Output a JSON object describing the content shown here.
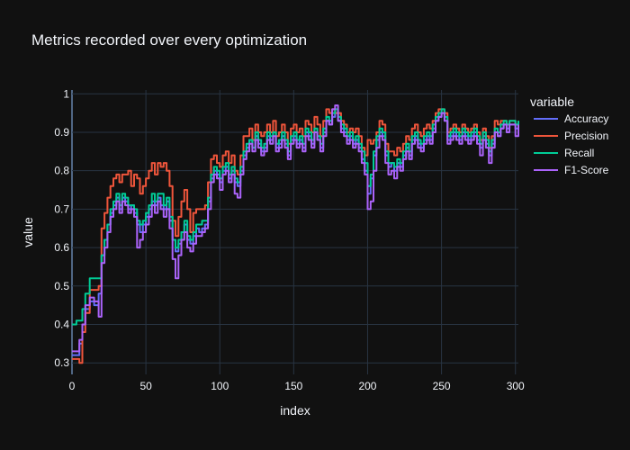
{
  "chart_data": {
    "type": "line",
    "title": "Metrics recorded over every optimization",
    "xlabel": "index",
    "ylabel": "value",
    "xlim": [
      0,
      302
    ],
    "ylim": [
      0.27,
      1.01
    ],
    "x_ticks": [
      0,
      50,
      100,
      150,
      200,
      250,
      300
    ],
    "y_ticks": [
      0.3,
      0.4,
      0.5,
      0.6,
      0.7,
      0.8,
      0.9,
      1
    ],
    "grid": true,
    "legend": {
      "title": "variable",
      "position": "right"
    },
    "series": [
      {
        "name": "Accuracy",
        "color": "#636efa",
        "x": [
          0,
          3,
          5,
          7,
          9,
          12,
          15,
          18,
          20,
          22,
          24,
          26,
          28,
          30,
          32,
          34,
          36,
          38,
          40,
          42,
          44,
          46,
          48,
          50,
          52,
          54,
          56,
          58,
          60,
          62,
          64,
          66,
          68,
          70,
          72,
          74,
          76,
          78,
          80,
          82,
          84,
          86,
          88,
          90,
          92,
          94,
          96,
          98,
          100,
          102,
          104,
          106,
          108,
          110,
          112,
          114,
          116,
          118,
          120,
          122,
          124,
          126,
          128,
          130,
          132,
          134,
          136,
          138,
          140,
          142,
          144,
          146,
          148,
          150,
          152,
          154,
          156,
          158,
          160,
          162,
          164,
          166,
          168,
          170,
          172,
          174,
          176,
          178,
          180,
          182,
          184,
          186,
          188,
          190,
          192,
          194,
          196,
          198,
          200,
          202,
          204,
          206,
          208,
          210,
          212,
          214,
          216,
          218,
          220,
          222,
          224,
          226,
          228,
          230,
          232,
          234,
          236,
          238,
          240,
          242,
          244,
          246,
          248,
          250,
          252,
          254,
          256,
          258,
          260,
          262,
          264,
          266,
          268,
          270,
          272,
          274,
          276,
          278,
          280,
          282,
          284,
          286,
          288,
          290,
          292,
          294,
          296,
          298,
          300,
          302
        ],
        "y": [
          0.32,
          0.32,
          0.35,
          0.4,
          0.44,
          0.46,
          0.45,
          0.48,
          0.58,
          0.62,
          0.66,
          0.69,
          0.71,
          0.73,
          0.7,
          0.73,
          0.72,
          0.7,
          0.71,
          0.69,
          0.66,
          0.64,
          0.66,
          0.68,
          0.7,
          0.72,
          0.71,
          0.73,
          0.71,
          0.7,
          0.72,
          0.67,
          0.62,
          0.59,
          0.61,
          0.64,
          0.66,
          0.62,
          0.61,
          0.63,
          0.65,
          0.64,
          0.65,
          0.66,
          0.72,
          0.78,
          0.8,
          0.79,
          0.77,
          0.8,
          0.81,
          0.78,
          0.8,
          0.77,
          0.76,
          0.8,
          0.84,
          0.86,
          0.88,
          0.86,
          0.89,
          0.87,
          0.85,
          0.86,
          0.89,
          0.88,
          0.9,
          0.86,
          0.87,
          0.89,
          0.87,
          0.84,
          0.88,
          0.89,
          0.87,
          0.88,
          0.86,
          0.9,
          0.89,
          0.87,
          0.9,
          0.88,
          0.86,
          0.9,
          0.93,
          0.92,
          0.94,
          0.95,
          0.93,
          0.91,
          0.9,
          0.88,
          0.89,
          0.87,
          0.88,
          0.86,
          0.83,
          0.8,
          0.74,
          0.78,
          0.84,
          0.88,
          0.9,
          0.89,
          0.84,
          0.81,
          0.82,
          0.8,
          0.82,
          0.81,
          0.84,
          0.86,
          0.84,
          0.88,
          0.89,
          0.87,
          0.86,
          0.88,
          0.89,
          0.88,
          0.91,
          0.93,
          0.94,
          0.95,
          0.93,
          0.88,
          0.89,
          0.9,
          0.89,
          0.88,
          0.9,
          0.89,
          0.88,
          0.89,
          0.9,
          0.88,
          0.86,
          0.89,
          0.87,
          0.84,
          0.87,
          0.9,
          0.89,
          0.91,
          0.92,
          0.91,
          0.92,
          0.92,
          0.91,
          0.92
        ]
      },
      {
        "name": "Precision",
        "color": "#ef553b",
        "x": [
          0,
          3,
          5,
          7,
          9,
          12,
          15,
          18,
          20,
          22,
          24,
          26,
          28,
          30,
          32,
          34,
          36,
          38,
          40,
          42,
          44,
          46,
          48,
          50,
          52,
          54,
          56,
          58,
          60,
          62,
          64,
          66,
          68,
          70,
          72,
          74,
          76,
          78,
          80,
          82,
          84,
          86,
          88,
          90,
          92,
          94,
          96,
          98,
          100,
          102,
          104,
          106,
          108,
          110,
          112,
          114,
          116,
          118,
          120,
          122,
          124,
          126,
          128,
          130,
          132,
          134,
          136,
          138,
          140,
          142,
          144,
          146,
          148,
          150,
          152,
          154,
          156,
          158,
          160,
          162,
          164,
          166,
          168,
          170,
          172,
          174,
          176,
          178,
          180,
          182,
          184,
          186,
          188,
          190,
          192,
          194,
          196,
          198,
          200,
          202,
          204,
          206,
          208,
          210,
          212,
          214,
          216,
          218,
          220,
          222,
          224,
          226,
          228,
          230,
          232,
          234,
          236,
          238,
          240,
          242,
          244,
          246,
          248,
          250,
          252,
          254,
          256,
          258,
          260,
          262,
          264,
          266,
          268,
          270,
          272,
          274,
          276,
          278,
          280,
          282,
          284,
          286,
          288,
          290,
          292,
          294,
          296,
          298,
          300,
          302
        ],
        "y": [
          0.31,
          0.31,
          0.3,
          0.38,
          0.43,
          0.49,
          0.49,
          0.5,
          0.65,
          0.69,
          0.73,
          0.76,
          0.78,
          0.79,
          0.77,
          0.79,
          0.79,
          0.8,
          0.76,
          0.79,
          0.78,
          0.74,
          0.76,
          0.78,
          0.8,
          0.82,
          0.79,
          0.82,
          0.81,
          0.82,
          0.8,
          0.76,
          0.67,
          0.63,
          0.68,
          0.72,
          0.75,
          0.7,
          0.64,
          0.69,
          0.7,
          0.7,
          0.7,
          0.71,
          0.77,
          0.83,
          0.84,
          0.82,
          0.81,
          0.84,
          0.85,
          0.82,
          0.84,
          0.8,
          0.79,
          0.84,
          0.89,
          0.89,
          0.91,
          0.88,
          0.92,
          0.9,
          0.89,
          0.9,
          0.92,
          0.9,
          0.93,
          0.89,
          0.9,
          0.92,
          0.9,
          0.87,
          0.91,
          0.92,
          0.9,
          0.91,
          0.89,
          0.93,
          0.92,
          0.9,
          0.94,
          0.92,
          0.89,
          0.93,
          0.96,
          0.95,
          0.96,
          0.95,
          0.95,
          0.93,
          0.92,
          0.9,
          0.91,
          0.9,
          0.91,
          0.89,
          0.86,
          0.84,
          0.88,
          0.87,
          0.88,
          0.9,
          0.93,
          0.92,
          0.87,
          0.85,
          0.85,
          0.84,
          0.86,
          0.85,
          0.87,
          0.89,
          0.88,
          0.91,
          0.92,
          0.9,
          0.89,
          0.91,
          0.92,
          0.91,
          0.93,
          0.95,
          0.96,
          0.96,
          0.95,
          0.9,
          0.91,
          0.92,
          0.91,
          0.9,
          0.92,
          0.91,
          0.9,
          0.91,
          0.92,
          0.9,
          0.88,
          0.91,
          0.89,
          0.86,
          0.89,
          0.93,
          0.92,
          0.93,
          0.93,
          0.92,
          0.93,
          0.93,
          0.92,
          0.93
        ]
      },
      {
        "name": "Recall",
        "color": "#00cc96",
        "x": [
          0,
          3,
          5,
          7,
          9,
          12,
          15,
          18,
          20,
          22,
          24,
          26,
          28,
          30,
          32,
          34,
          36,
          38,
          40,
          42,
          44,
          46,
          48,
          50,
          52,
          54,
          56,
          58,
          60,
          62,
          64,
          66,
          68,
          70,
          72,
          74,
          76,
          78,
          80,
          82,
          84,
          86,
          88,
          90,
          92,
          94,
          96,
          98,
          100,
          102,
          104,
          106,
          108,
          110,
          112,
          114,
          116,
          118,
          120,
          122,
          124,
          126,
          128,
          130,
          132,
          134,
          136,
          138,
          140,
          142,
          144,
          146,
          148,
          150,
          152,
          154,
          156,
          158,
          160,
          162,
          164,
          166,
          168,
          170,
          172,
          174,
          176,
          178,
          180,
          182,
          184,
          186,
          188,
          190,
          192,
          194,
          196,
          198,
          200,
          202,
          204,
          206,
          208,
          210,
          212,
          214,
          216,
          218,
          220,
          222,
          224,
          226,
          228,
          230,
          232,
          234,
          236,
          238,
          240,
          242,
          244,
          246,
          248,
          250,
          252,
          254,
          256,
          258,
          260,
          262,
          264,
          266,
          268,
          270,
          272,
          274,
          276,
          278,
          280,
          282,
          284,
          286,
          288,
          290,
          292,
          294,
          296,
          298,
          300,
          302
        ],
        "y": [
          0.4,
          0.41,
          0.41,
          0.44,
          0.48,
          0.52,
          0.52,
          0.52,
          0.58,
          0.62,
          0.66,
          0.7,
          0.72,
          0.74,
          0.71,
          0.74,
          0.73,
          0.71,
          0.71,
          0.7,
          0.67,
          0.66,
          0.67,
          0.69,
          0.71,
          0.74,
          0.72,
          0.74,
          0.74,
          0.71,
          0.73,
          0.68,
          0.62,
          0.6,
          0.62,
          0.64,
          0.67,
          0.63,
          0.62,
          0.64,
          0.66,
          0.66,
          0.67,
          0.67,
          0.73,
          0.79,
          0.81,
          0.8,
          0.78,
          0.81,
          0.82,
          0.79,
          0.81,
          0.78,
          0.77,
          0.81,
          0.85,
          0.87,
          0.88,
          0.86,
          0.9,
          0.88,
          0.86,
          0.87,
          0.9,
          0.89,
          0.9,
          0.87,
          0.88,
          0.9,
          0.88,
          0.85,
          0.89,
          0.9,
          0.88,
          0.89,
          0.87,
          0.91,
          0.9,
          0.88,
          0.91,
          0.89,
          0.87,
          0.91,
          0.94,
          0.93,
          0.95,
          0.96,
          0.94,
          0.92,
          0.91,
          0.89,
          0.9,
          0.88,
          0.89,
          0.87,
          0.85,
          0.82,
          0.76,
          0.79,
          0.85,
          0.89,
          0.91,
          0.9,
          0.85,
          0.82,
          0.82,
          0.81,
          0.83,
          0.82,
          0.85,
          0.87,
          0.85,
          0.89,
          0.9,
          0.88,
          0.87,
          0.89,
          0.9,
          0.89,
          0.92,
          0.94,
          0.95,
          0.96,
          0.94,
          0.89,
          0.9,
          0.91,
          0.9,
          0.89,
          0.91,
          0.9,
          0.89,
          0.9,
          0.91,
          0.89,
          0.87,
          0.9,
          0.88,
          0.85,
          0.88,
          0.91,
          0.9,
          0.92,
          0.93,
          0.92,
          0.93,
          0.93,
          0.92,
          0.93
        ]
      },
      {
        "name": "F1-Score",
        "color": "#ab63fa",
        "x": [
          0,
          3,
          5,
          7,
          9,
          12,
          15,
          18,
          20,
          22,
          24,
          26,
          28,
          30,
          32,
          34,
          36,
          38,
          40,
          42,
          44,
          46,
          48,
          50,
          52,
          54,
          56,
          58,
          60,
          62,
          64,
          66,
          68,
          70,
          72,
          74,
          76,
          78,
          80,
          82,
          84,
          86,
          88,
          90,
          92,
          94,
          96,
          98,
          100,
          102,
          104,
          106,
          108,
          110,
          112,
          114,
          116,
          118,
          120,
          122,
          124,
          126,
          128,
          130,
          132,
          134,
          136,
          138,
          140,
          142,
          144,
          146,
          148,
          150,
          152,
          154,
          156,
          158,
          160,
          162,
          164,
          166,
          168,
          170,
          172,
          174,
          176,
          178,
          180,
          182,
          184,
          186,
          188,
          190,
          192,
          194,
          196,
          198,
          200,
          202,
          204,
          206,
          208,
          210,
          212,
          214,
          216,
          218,
          220,
          222,
          224,
          226,
          228,
          230,
          232,
          234,
          236,
          238,
          240,
          242,
          244,
          246,
          248,
          250,
          252,
          254,
          256,
          258,
          260,
          262,
          264,
          266,
          268,
          270,
          272,
          274,
          276,
          278,
          280,
          282,
          284,
          286,
          288,
          290,
          292,
          294,
          296,
          298,
          300,
          302
        ],
        "y": [
          0.33,
          0.33,
          0.36,
          0.4,
          0.45,
          0.47,
          0.46,
          0.42,
          0.56,
          0.6,
          0.64,
          0.68,
          0.7,
          0.72,
          0.69,
          0.72,
          0.71,
          0.69,
          0.7,
          0.68,
          0.6,
          0.62,
          0.64,
          0.66,
          0.68,
          0.71,
          0.69,
          0.72,
          0.7,
          0.68,
          0.7,
          0.65,
          0.57,
          0.52,
          0.58,
          0.62,
          0.64,
          0.6,
          0.59,
          0.61,
          0.63,
          0.63,
          0.64,
          0.65,
          0.7,
          0.77,
          0.79,
          0.78,
          0.75,
          0.79,
          0.8,
          0.77,
          0.79,
          0.74,
          0.73,
          0.79,
          0.83,
          0.85,
          0.87,
          0.85,
          0.88,
          0.86,
          0.84,
          0.85,
          0.88,
          0.87,
          0.89,
          0.85,
          0.86,
          0.88,
          0.86,
          0.83,
          0.87,
          0.88,
          0.86,
          0.87,
          0.85,
          0.89,
          0.88,
          0.86,
          0.9,
          0.88,
          0.85,
          0.89,
          0.93,
          0.92,
          0.96,
          0.97,
          0.93,
          0.9,
          0.89,
          0.87,
          0.88,
          0.86,
          0.87,
          0.85,
          0.82,
          0.79,
          0.7,
          0.72,
          0.8,
          0.86,
          0.89,
          0.88,
          0.82,
          0.79,
          0.8,
          0.78,
          0.81,
          0.8,
          0.83,
          0.85,
          0.83,
          0.87,
          0.88,
          0.86,
          0.85,
          0.87,
          0.88,
          0.87,
          0.9,
          0.93,
          0.94,
          0.95,
          0.93,
          0.87,
          0.88,
          0.89,
          0.88,
          0.87,
          0.89,
          0.88,
          0.87,
          0.88,
          0.89,
          0.87,
          0.84,
          0.88,
          0.86,
          0.82,
          0.86,
          0.9,
          0.89,
          0.91,
          0.92,
          0.9,
          0.92,
          0.92,
          0.89,
          0.92
        ]
      }
    ]
  }
}
